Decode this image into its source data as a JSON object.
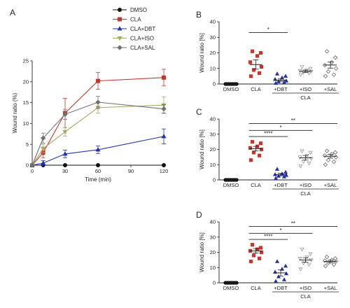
{
  "chart_data": [
    {
      "panel": "A",
      "type": "line",
      "x": [
        0,
        10,
        30,
        60,
        120
      ],
      "xlabel": "Time (min)",
      "ylabel": "Wound ratio (%)",
      "xlim": [
        0,
        120
      ],
      "ylim": [
        0,
        25
      ],
      "xticks": [
        0,
        30,
        60,
        90,
        120
      ],
      "yticks": [
        0,
        5,
        10,
        15,
        20,
        25
      ],
      "legend": "top-right",
      "series": [
        {
          "name": "DMSO",
          "values": [
            0,
            0,
            0,
            0,
            0
          ],
          "err": [
            0,
            0,
            0,
            0,
            0
          ],
          "color": "#111111",
          "marker": "circle"
        },
        {
          "name": "CLA",
          "values": [
            0,
            3,
            12.5,
            20.2,
            21
          ],
          "err": [
            0.2,
            1.2,
            3.5,
            2.0,
            2.0
          ],
          "color": "#c8352b",
          "marker": "square"
        },
        {
          "name": "CLA+DBT",
          "values": [
            0,
            0.5,
            2.7,
            3.7,
            6.9
          ],
          "err": [
            0.2,
            0.6,
            0.9,
            0.9,
            1.8
          ],
          "color": "#2233aa",
          "marker": "triangle"
        },
        {
          "name": "CLA+ISO",
          "values": [
            0,
            4,
            8,
            13.8,
            14.4
          ],
          "err": [
            0.2,
            1.0,
            1.0,
            1.3,
            2.0
          ],
          "color": "#a8a860",
          "marker": "triangle-down"
        },
        {
          "name": "CLA+SAL",
          "values": [
            0,
            6.5,
            12.2,
            15.1,
            13.5
          ],
          "err": [
            0.2,
            1.2,
            1.2,
            1.4,
            1.0
          ],
          "color": "#707070",
          "marker": "diamond"
        }
      ]
    },
    {
      "panel": "B",
      "type": "scatter",
      "ylabel": "Wound ratio [%]",
      "ylim": [
        0,
        40
      ],
      "yticks": [
        0,
        10,
        20,
        30,
        40
      ],
      "categories": [
        "DMSO",
        "CLA",
        "+DBT",
        "+ISO",
        "+SAL"
      ],
      "group_label": "CLA",
      "groups": [
        {
          "points": [
            0,
            0,
            0,
            0,
            0,
            0,
            0,
            0
          ],
          "mean": 0,
          "sem": 0,
          "color": "#111111",
          "marker": "circle"
        },
        {
          "points": [
            5,
            7,
            9,
            11,
            14,
            18,
            20,
            21
          ],
          "mean": 12.5,
          "sem": 3,
          "color": "#c8352b",
          "marker": "square"
        },
        {
          "points": [
            0.5,
            1,
            1.5,
            2,
            3,
            4,
            5,
            6.5
          ],
          "mean": 2.5,
          "sem": 0.8,
          "color": "#2233aa",
          "marker": "triangle"
        },
        {
          "points": [
            6,
            7,
            7.5,
            8,
            8.5,
            9,
            10,
            11
          ],
          "mean": 8.2,
          "sem": 0.8,
          "color": "#999999",
          "marker": "triangle-down"
        },
        {
          "points": [
            5,
            6,
            8,
            10,
            12,
            14,
            17,
            21
          ],
          "mean": 12.2,
          "sem": 2,
          "color": "#666666",
          "marker": "diamond"
        }
      ],
      "significance": [
        {
          "from": 1,
          "to": 2,
          "label": "*",
          "y": 33
        }
      ]
    },
    {
      "panel": "C",
      "type": "scatter",
      "ylabel": "Wound ratio [%]",
      "ylim": [
        0,
        40
      ],
      "yticks": [
        0,
        10,
        20,
        30,
        40
      ],
      "categories": [
        "DMSO",
        "CLA",
        "+DBT",
        "+ISO",
        "+SAL"
      ],
      "group_label": "CLA",
      "groups": [
        {
          "points": [
            0,
            0,
            0,
            0,
            0,
            0,
            0,
            0
          ],
          "mean": 0,
          "sem": 0,
          "color": "#111111",
          "marker": "circle"
        },
        {
          "points": [
            13,
            16,
            18,
            20,
            21,
            22,
            24,
            25
          ],
          "mean": 20.5,
          "sem": 1.5,
          "color": "#c8352b",
          "marker": "square"
        },
        {
          "points": [
            1,
            2,
            2.5,
            3,
            3.5,
            4,
            5,
            7
          ],
          "mean": 3.5,
          "sem": 0.8,
          "color": "#2233aa",
          "marker": "triangle"
        },
        {
          "points": [
            9,
            11,
            12,
            14,
            15,
            16,
            18,
            19
          ],
          "mean": 14.5,
          "sem": 1.5,
          "color": "#999999",
          "marker": "triangle-down"
        },
        {
          "points": [
            10,
            12,
            13,
            15,
            16,
            17,
            18,
            19
          ],
          "mean": 15.5,
          "sem": 1.2,
          "color": "#666666",
          "marker": "diamond"
        }
      ],
      "significance": [
        {
          "from": 1,
          "to": 4,
          "label": "**",
          "y": 37
        },
        {
          "from": 1,
          "to": 3,
          "label": "*",
          "y": 32.5
        },
        {
          "from": 1,
          "to": 2,
          "label": "****",
          "y": 28.5
        }
      ]
    },
    {
      "panel": "D",
      "type": "scatter",
      "ylabel": "Wound ratio [%]",
      "ylim": [
        0,
        40
      ],
      "yticks": [
        0,
        10,
        20,
        30,
        40
      ],
      "categories": [
        "DMSO",
        "CLA",
        "+DBT",
        "+ISO",
        "+SAL"
      ],
      "group_label": "CLA",
      "groups": [
        {
          "points": [
            0,
            0,
            0,
            0,
            0,
            0,
            0,
            0
          ],
          "mean": 0,
          "sem": 0,
          "color": "#111111",
          "marker": "circle"
        },
        {
          "points": [
            14,
            16,
            18,
            20,
            21,
            22,
            23,
            25
          ],
          "mean": 21,
          "sem": 1.5,
          "color": "#c8352b",
          "marker": "square"
        },
        {
          "points": [
            1,
            2,
            4,
            6,
            7,
            9,
            11,
            14
          ],
          "mean": 6.5,
          "sem": 2,
          "color": "#2233aa",
          "marker": "triangle"
        },
        {
          "points": [
            9,
            12,
            13,
            15,
            16,
            17,
            19,
            22
          ],
          "mean": 15,
          "sem": 1.5,
          "color": "#999999",
          "marker": "triangle-down"
        },
        {
          "points": [
            11,
            12,
            13,
            14,
            14.5,
            15,
            16,
            17
          ],
          "mean": 14,
          "sem": 0.8,
          "color": "#666666",
          "marker": "diamond"
        }
      ],
      "significance": [
        {
          "from": 1,
          "to": 4,
          "label": "**",
          "y": 37
        },
        {
          "from": 1,
          "to": 3,
          "label": "*",
          "y": 32.5
        },
        {
          "from": 1,
          "to": 2,
          "label": "****",
          "y": 28.5
        }
      ]
    }
  ]
}
